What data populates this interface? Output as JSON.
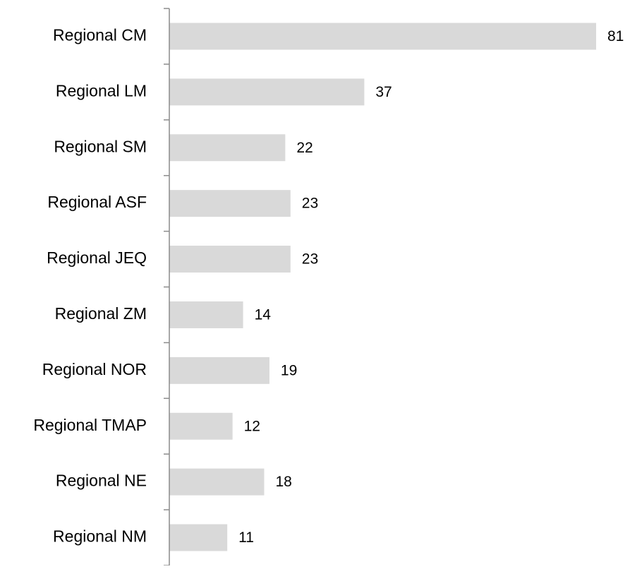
{
  "chart_data": {
    "type": "bar",
    "orientation": "horizontal",
    "categories": [
      "Regional CM",
      "Regional LM",
      "Regional SM",
      "Regional ASF",
      "Regional JEQ",
      "Regional ZM",
      "Regional NOR",
      "Regional TMAP",
      "Regional NE",
      "Regional NM"
    ],
    "values": [
      81,
      37,
      22,
      23,
      23,
      14,
      19,
      12,
      18,
      11
    ],
    "color": "#d9d9d9",
    "axis_color": "#8c8c8c"
  }
}
